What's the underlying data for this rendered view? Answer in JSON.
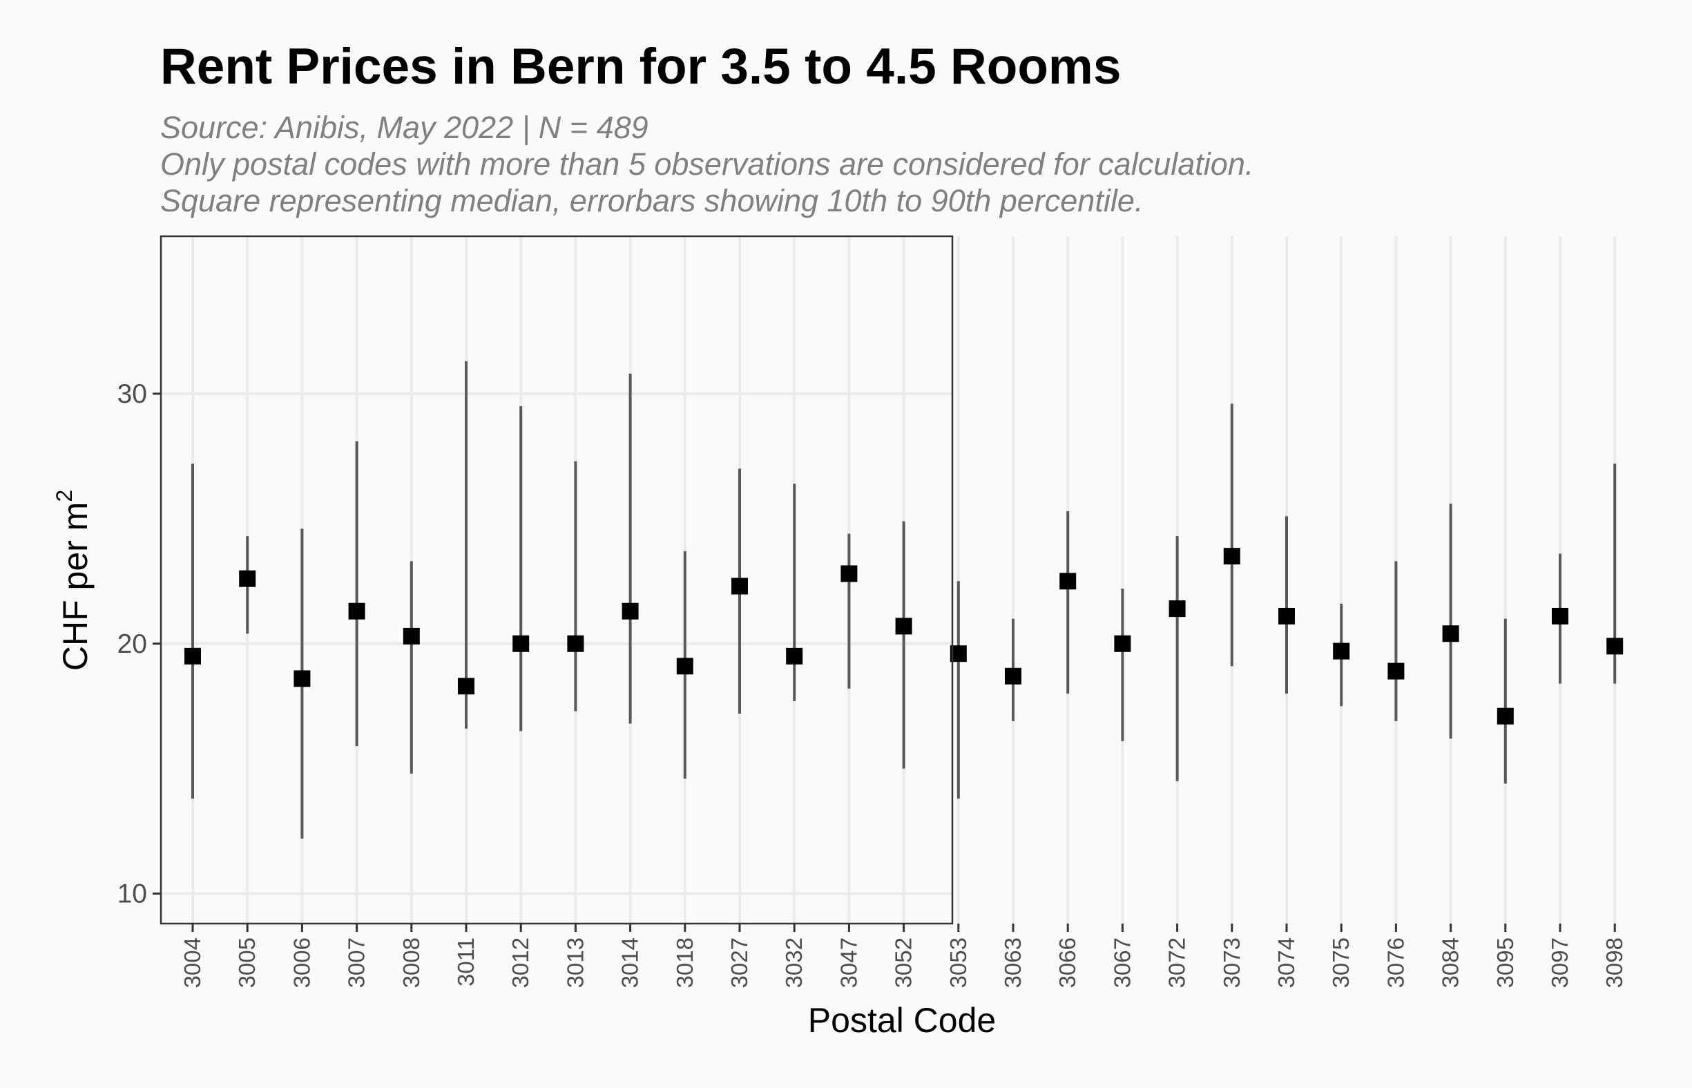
{
  "chart_data": {
    "type": "errorbar",
    "title": "Rent Prices in Bern for 3.5 to 4.5 Rooms",
    "subtitle": [
      "Source: Anibis, May 2022 | N = 489",
      "Only postal codes with more than 5 observations are considered for calculation.",
      "Square representing median, errorbars showing 10th to 90th percentile."
    ],
    "xlabel": "Postal Code",
    "ylabel": "CHF per m",
    "ylabel_superscript": "2",
    "ylim": [
      8.8,
      36.3
    ],
    "yticks": [
      10,
      20,
      30
    ],
    "grid": true,
    "legend": "none",
    "categories": [
      "3004",
      "3005",
      "3006",
      "3007",
      "3008",
      "3011",
      "3012",
      "3013",
      "3014",
      "3018",
      "3027",
      "3032",
      "3047",
      "3052",
      "3053",
      "3063",
      "3066",
      "3067",
      "3072",
      "3073",
      "3074",
      "3075",
      "3076",
      "3084",
      "3095",
      "3097",
      "3098"
    ],
    "median": [
      19.5,
      22.6,
      18.6,
      21.3,
      20.3,
      18.3,
      20.0,
      20.0,
      21.3,
      19.1,
      22.3,
      19.5,
      22.8,
      20.7,
      19.6,
      18.7,
      22.5,
      20.0,
      21.4,
      23.5,
      21.1,
      19.7,
      18.9,
      20.4,
      17.1,
      21.1,
      19.9
    ],
    "p10": [
      13.8,
      20.4,
      12.2,
      15.9,
      14.8,
      16.6,
      16.5,
      17.3,
      16.8,
      14.6,
      17.2,
      17.7,
      18.2,
      15.0,
      13.8,
      16.9,
      18.0,
      16.1,
      14.5,
      19.1,
      18.0,
      17.5,
      16.9,
      16.2,
      14.4,
      18.4,
      18.4
    ],
    "p90": [
      27.2,
      24.3,
      24.6,
      28.1,
      23.3,
      31.3,
      29.5,
      27.3,
      30.8,
      23.7,
      27.0,
      26.4,
      24.4,
      24.9,
      22.5,
      21.0,
      25.3,
      22.2,
      24.3,
      29.6,
      25.1,
      21.6,
      23.3,
      25.6,
      21.0,
      23.6,
      27.2
    ]
  }
}
